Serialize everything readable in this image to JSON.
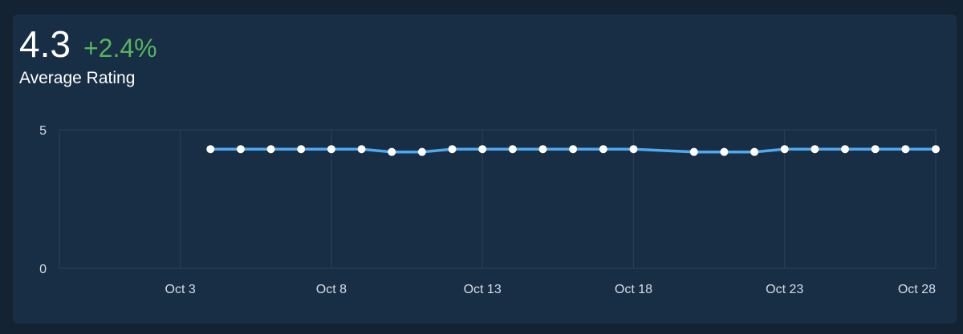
{
  "metric": {
    "value": "4.3",
    "change": "+2.4%",
    "label": "Average Rating"
  },
  "colors": {
    "page_bg": "#132334",
    "card_bg": "#182e45",
    "line": "#4fa9f0",
    "point": "#ffffff",
    "positive": "#57b45f",
    "grid": "#2b4055"
  },
  "chart_data": {
    "type": "line",
    "xlabel": "",
    "ylabel": "",
    "ylim": [
      0,
      5
    ],
    "y_ticks": [
      0,
      5
    ],
    "x_ticks": [
      {
        "day": 3,
        "label": "Oct 3"
      },
      {
        "day": 8,
        "label": "Oct 8"
      },
      {
        "day": 13,
        "label": "Oct 13"
      },
      {
        "day": 18,
        "label": "Oct 18"
      },
      {
        "day": 23,
        "label": "Oct 23"
      },
      {
        "day": 28,
        "label": "Oct 28"
      }
    ],
    "x_range": [
      "Sep 29",
      "Oct 28"
    ],
    "grid": true,
    "series": [
      {
        "x": [
          "Oct 4",
          "Oct 5",
          "Oct 6",
          "Oct 7",
          "Oct 8",
          "Oct 9",
          "Oct 10",
          "Oct 11",
          "Oct 12",
          "Oct 13",
          "Oct 14",
          "Oct 15",
          "Oct 16",
          "Oct 17",
          "Oct 18",
          "Oct 20",
          "Oct 21",
          "Oct 22",
          "Oct 23",
          "Oct 24",
          "Oct 25",
          "Oct 26",
          "Oct 27",
          "Oct 28"
        ],
        "days": [
          4,
          5,
          6,
          7,
          8,
          9,
          10,
          11,
          12,
          13,
          14,
          15,
          16,
          17,
          18,
          20,
          21,
          22,
          23,
          24,
          25,
          26,
          27,
          28
        ],
        "values": [
          4.3,
          4.3,
          4.3,
          4.3,
          4.3,
          4.3,
          4.2,
          4.2,
          4.3,
          4.3,
          4.3,
          4.3,
          4.3,
          4.3,
          4.3,
          4.2,
          4.2,
          4.2,
          4.3,
          4.3,
          4.3,
          4.3,
          4.3,
          4.3
        ]
      }
    ]
  }
}
